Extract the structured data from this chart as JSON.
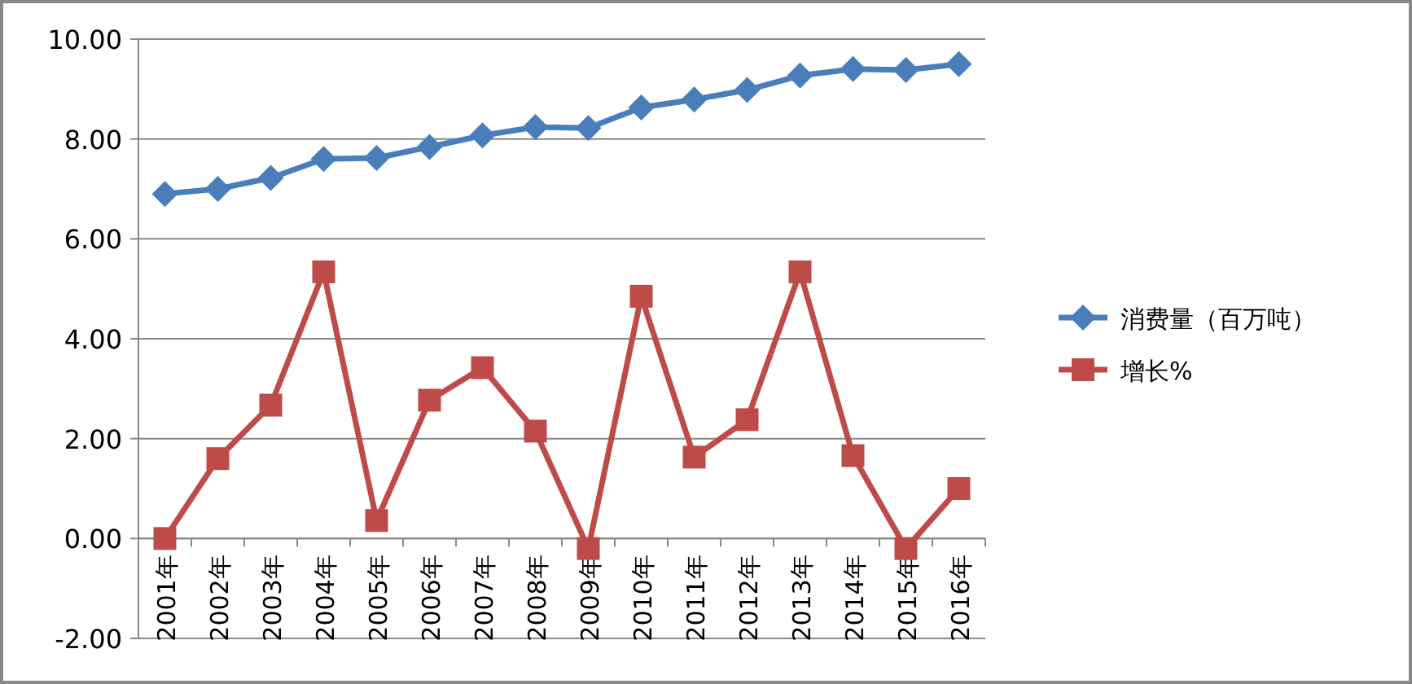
{
  "chart_data": {
    "type": "line",
    "categories": [
      "2001年",
      "2002年",
      "2003年",
      "2004年",
      "2005年",
      "2006年",
      "2007年",
      "2008年",
      "2009年",
      "2010年",
      "2011年",
      "2012年",
      "2013年",
      "2014年",
      "2015年",
      "2016年"
    ],
    "series": [
      {
        "name": "消费量（百万吨）",
        "color": "#4a7ebb",
        "marker": "diamond",
        "values": [
          6.9,
          7.0,
          7.22,
          7.6,
          7.62,
          7.84,
          8.07,
          8.24,
          8.22,
          8.63,
          8.79,
          8.98,
          9.27,
          9.4,
          9.38,
          9.5
        ]
      },
      {
        "name": "增长%",
        "color": "#be4b48",
        "marker": "square",
        "values": [
          0,
          1.6,
          2.67,
          5.34,
          0.36,
          2.77,
          3.42,
          2.15,
          -0.2,
          4.85,
          1.63,
          2.38,
          5.34,
          1.66,
          -0.2,
          1.0
        ]
      }
    ],
    "ylim": [
      -2,
      10
    ],
    "yticks": [
      {
        "value": -2,
        "label": "-2.00"
      },
      {
        "value": 0,
        "label": "0.00"
      },
      {
        "value": 2,
        "label": "2.00"
      },
      {
        "value": 4,
        "label": "4.00"
      },
      {
        "value": 6,
        "label": "6.00"
      },
      {
        "value": 8,
        "label": "8.00"
      },
      {
        "value": 10,
        "label": "10.00"
      }
    ],
    "grid": "y",
    "legend": "right"
  }
}
